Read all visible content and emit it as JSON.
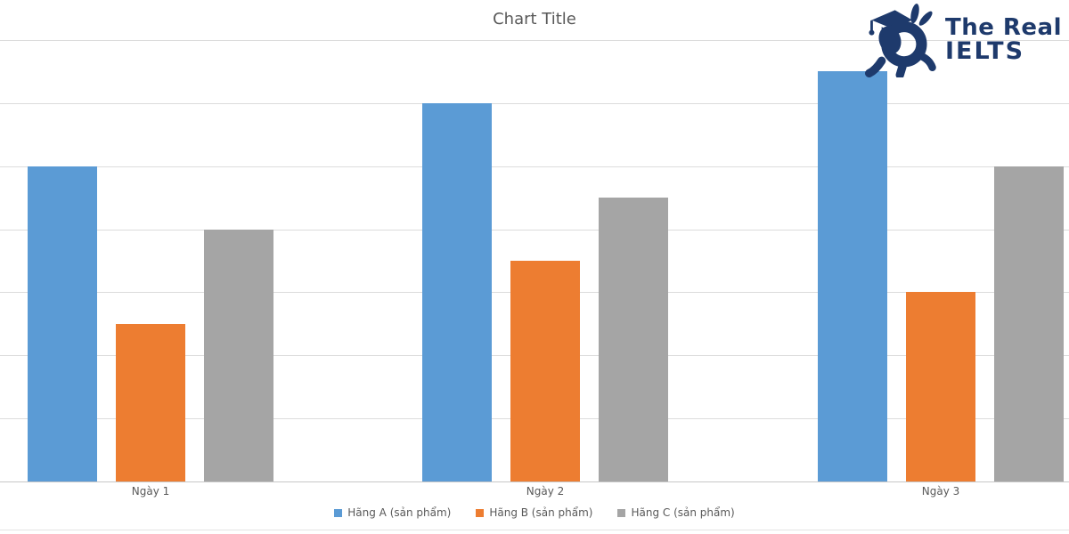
{
  "logo": {
    "line1": "The Real",
    "line2": "IELTS",
    "color": "#1e3a6c"
  },
  "chart_data": {
    "type": "bar",
    "title": "Chart Title",
    "categories": [
      "Ngày 1",
      "Ngày 2",
      "Ngày 3"
    ],
    "series": [
      {
        "name": "Hãng A (sản phẩm)",
        "color": "#5B9BD5",
        "values": [
          50,
          60,
          65
        ]
      },
      {
        "name": "Hãng B (sản phẩm)",
        "color": "#ED7D31",
        "values": [
          25,
          35,
          30
        ]
      },
      {
        "name": "Hãng C (sản phẩm)",
        "color": "#A5A5A5",
        "values": [
          40,
          45,
          50
        ]
      }
    ],
    "xlabel": "",
    "ylabel": "",
    "ylim": [
      0,
      70
    ],
    "grid_step": 10,
    "grid": true,
    "y_axis_labels_visible": false,
    "legend_position": "bottom",
    "text_color": "#595959",
    "gridline_color": "#dcdcdc"
  }
}
